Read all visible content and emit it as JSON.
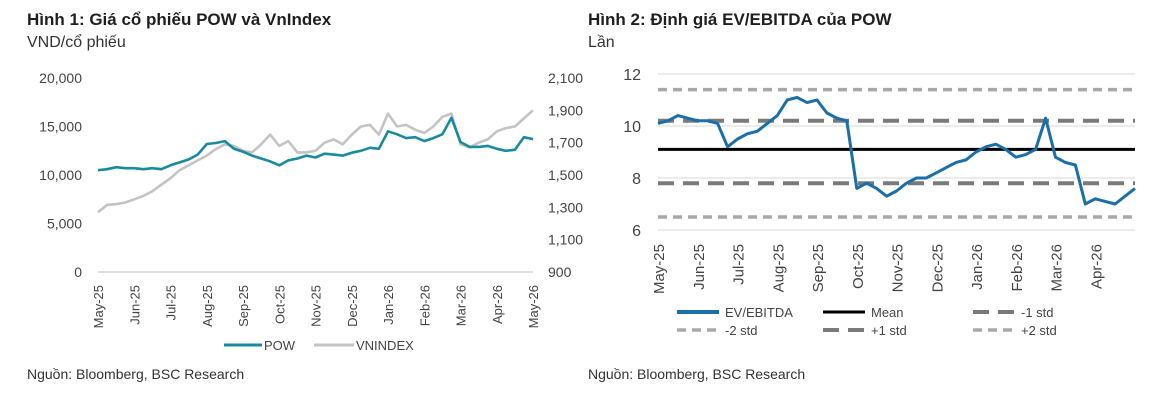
{
  "charts": [
    {
      "title": "Hình 1: Giá cổ phiếu POW và VnIndex",
      "subtitle": "VND/cổ phiếu",
      "source": "Nguồn: Bloomberg, BSC Research"
    },
    {
      "title": "Hình 2: Định giá EV/EBITDA của POW",
      "subtitle": "Lần",
      "source": "Nguồn: Bloomberg, BSC Research"
    }
  ],
  "colors": {
    "pow": "#1a8a9e",
    "vnindex": "#c4c4c4",
    "ev": "#1b6ea8",
    "mean": "#000000",
    "std1": "#7a7a7a",
    "std2": "#a8a8a8",
    "grid": "#d9d9d9"
  },
  "chart_data": [
    {
      "type": "line",
      "x_ticks": [
        "May-25",
        "Jun-25",
        "Jul-25",
        "Aug-25",
        "Sep-25",
        "Oct-25",
        "Nov-25",
        "Dec-25",
        "Jan-26",
        "Feb-26",
        "Mar-26",
        "Apr-26",
        "May-26"
      ],
      "ylim": [
        0,
        20000
      ],
      "y_ticks": [
        "0",
        "5,000",
        "10,000",
        "15,000",
        "20,000"
      ],
      "y2lim": [
        900,
        2100
      ],
      "y2_ticks": [
        "900",
        "1,100",
        "1,300",
        "1,500",
        "1,700",
        "1,900",
        "2,100"
      ],
      "grid": false,
      "legend": "bottom",
      "series": [
        {
          "name": "POW",
          "axis": "left",
          "x": [
            0,
            0.25,
            0.5,
            0.75,
            1,
            1.25,
            1.5,
            1.75,
            2,
            2.25,
            2.5,
            2.75,
            3,
            3.25,
            3.5,
            3.75,
            4,
            4.25,
            4.5,
            4.75,
            5,
            5.25,
            5.5,
            5.75,
            6,
            6.25,
            6.5,
            6.75,
            7,
            7.25,
            7.5,
            7.75,
            8,
            8.25,
            8.5,
            8.75,
            9,
            9.25,
            9.5,
            9.75,
            10,
            10.25,
            10.5,
            10.75,
            11,
            11.25,
            11.5,
            11.75,
            12
          ],
          "values": [
            10500,
            10600,
            10800,
            10700,
            10700,
            10600,
            10700,
            10600,
            11000,
            11300,
            11600,
            12100,
            13200,
            13300,
            13500,
            12700,
            12400,
            12000,
            11700,
            11400,
            11000,
            11500,
            11700,
            12000,
            11800,
            12200,
            12100,
            12000,
            12300,
            12500,
            12800,
            12700,
            14500,
            14200,
            13800,
            13900,
            13500,
            13800,
            14200,
            15900,
            13400,
            12900,
            12900,
            13000,
            12700,
            12500,
            12600,
            13900,
            13700
          ]
        },
        {
          "name": "VNINDEX",
          "axis": "right",
          "x": [
            0,
            0.25,
            0.5,
            0.75,
            1,
            1.25,
            1.5,
            1.75,
            2,
            2.25,
            2.5,
            2.75,
            3,
            3.25,
            3.5,
            3.75,
            4,
            4.25,
            4.5,
            4.75,
            5,
            5.25,
            5.5,
            5.75,
            6,
            6.25,
            6.5,
            6.75,
            7,
            7.25,
            7.5,
            7.75,
            8,
            8.25,
            8.5,
            8.75,
            9,
            9.25,
            9.5,
            9.75,
            10,
            10.25,
            10.5,
            10.75,
            11,
            11.25,
            11.5,
            11.75,
            12
          ],
          "values": [
            1270,
            1315,
            1320,
            1330,
            1350,
            1370,
            1400,
            1440,
            1480,
            1530,
            1560,
            1590,
            1620,
            1660,
            1690,
            1680,
            1650,
            1640,
            1690,
            1750,
            1680,
            1710,
            1640,
            1640,
            1650,
            1700,
            1720,
            1690,
            1750,
            1800,
            1810,
            1750,
            1880,
            1800,
            1810,
            1780,
            1760,
            1800,
            1860,
            1880,
            1690,
            1670,
            1700,
            1720,
            1770,
            1790,
            1800,
            1850,
            1900
          ]
        }
      ]
    },
    {
      "type": "line",
      "x_ticks": [
        "May-25",
        "Jun-25",
        "Jul-25",
        "Aug-25",
        "Sep-25",
        "Oct-25",
        "Nov-25",
        "Dec-25",
        "Jan-26",
        "Feb-26",
        "Mar-26",
        "Apr-26"
      ],
      "ylim": [
        6,
        12
      ],
      "y_ticks": [
        "6",
        "8",
        "10",
        "12"
      ],
      "grid": true,
      "legend": "bottom",
      "series": [
        {
          "name": "EV/EBITDA",
          "x": [
            0,
            0.25,
            0.5,
            0.75,
            1,
            1.25,
            1.5,
            1.75,
            2,
            2.25,
            2.5,
            2.75,
            3,
            3.25,
            3.5,
            3.75,
            4,
            4.25,
            4.5,
            4.75,
            5,
            5.25,
            5.5,
            5.75,
            6,
            6.25,
            6.5,
            6.75,
            7,
            7.25,
            7.5,
            7.75,
            8,
            8.25,
            8.5,
            8.75,
            9,
            9.25,
            9.5,
            9.75,
            10,
            10.25,
            10.5,
            10.75,
            11,
            11.25,
            11.5,
            11.75,
            12
          ],
          "values": [
            10.1,
            10.2,
            10.4,
            10.3,
            10.2,
            10.2,
            10.1,
            9.2,
            9.5,
            9.7,
            9.8,
            10.1,
            10.4,
            11.0,
            11.1,
            10.9,
            11.0,
            10.5,
            10.3,
            10.2,
            7.6,
            7.8,
            7.6,
            7.3,
            7.5,
            7.8,
            8.0,
            8.0,
            8.2,
            8.4,
            8.6,
            8.7,
            9.0,
            9.2,
            9.3,
            9.1,
            8.8,
            8.9,
            9.1,
            10.3,
            8.8,
            8.6,
            8.5,
            7.0,
            7.2,
            7.1,
            7.0,
            7.3,
            7.6
          ]
        },
        {
          "name": "Mean",
          "value": 9.1
        },
        {
          "name": "-1 std",
          "value": 7.8
        },
        {
          "name": "-2 std",
          "value": 6.5
        },
        {
          "name": "+1 std",
          "value": 10.2
        },
        {
          "name": "+2 std",
          "value": 11.4
        }
      ]
    }
  ]
}
